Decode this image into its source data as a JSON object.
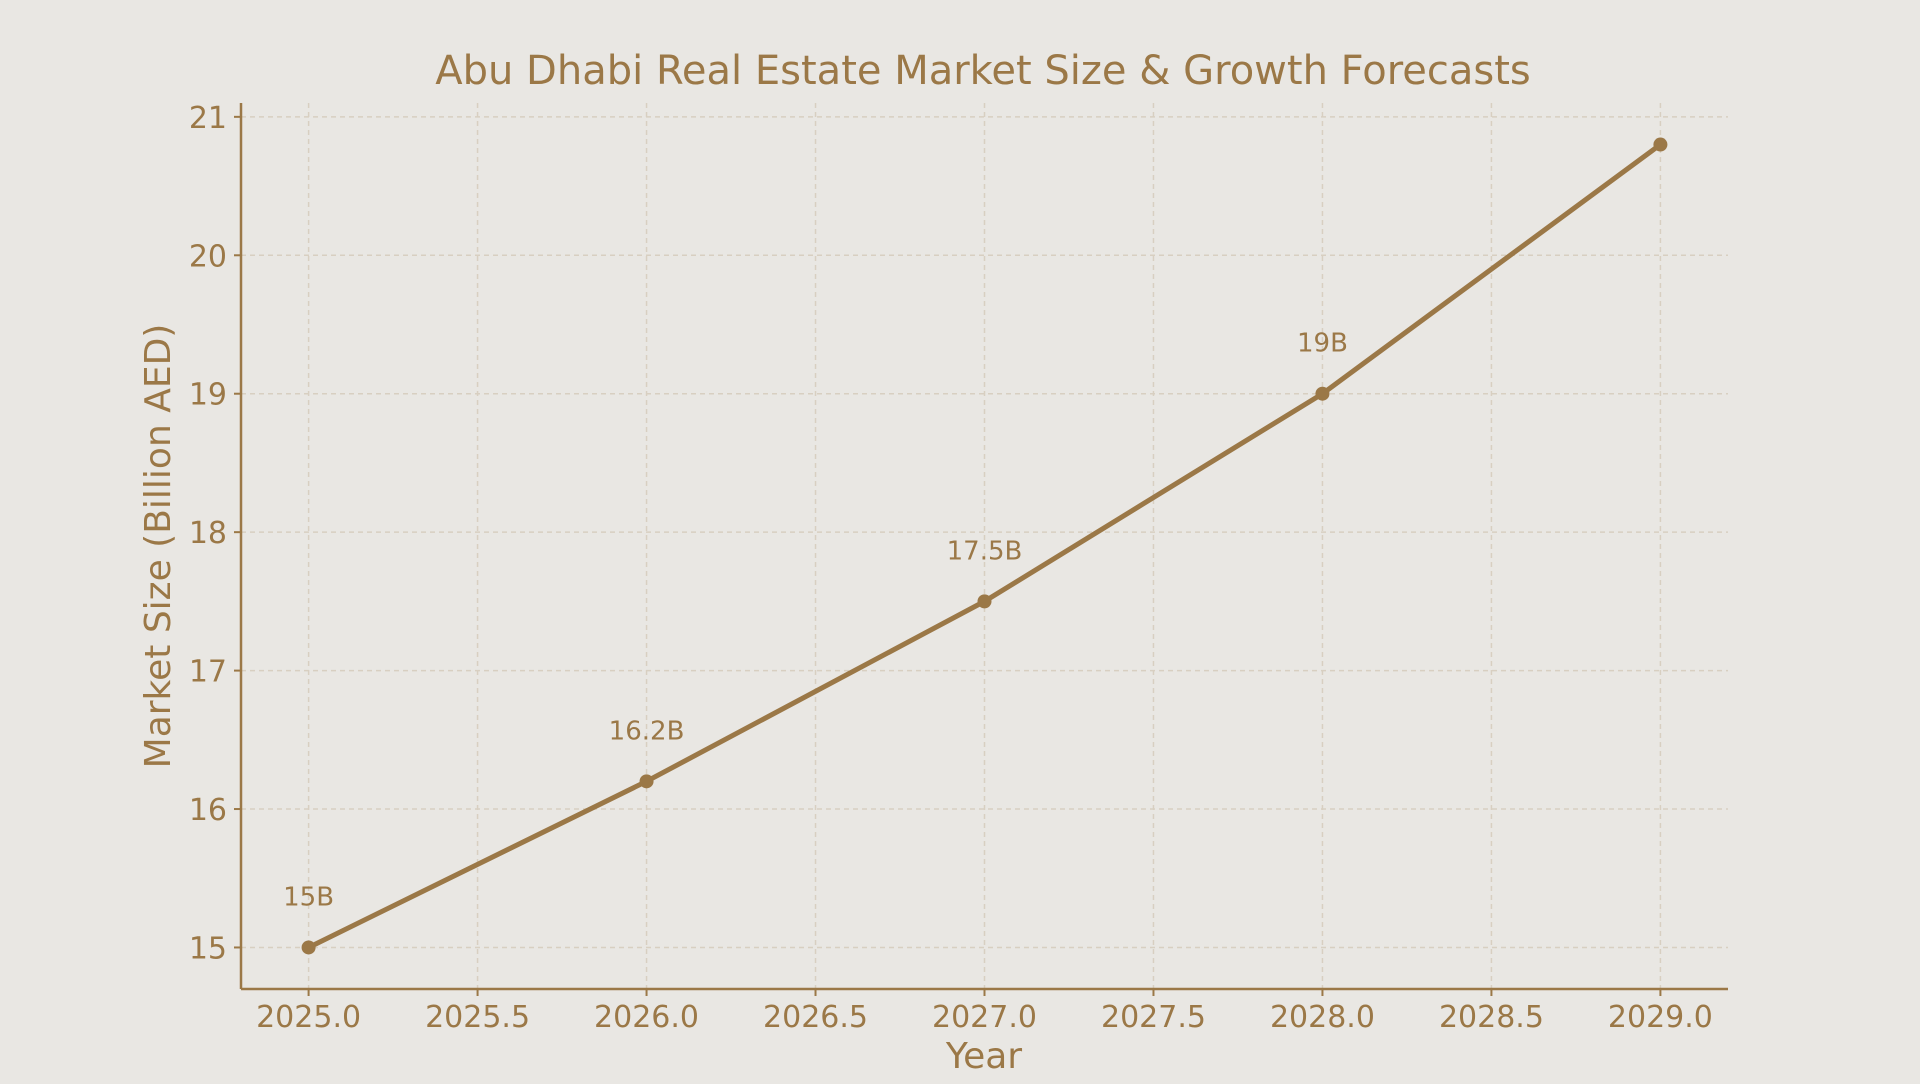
{
  "chart_data": {
    "type": "line",
    "title": "Abu Dhabi Real Estate Market Size & Growth Forecasts",
    "xlabel": "Year",
    "ylabel": "Market Size (Billion AED)",
    "xlim": [
      2024.8,
      2029.2
    ],
    "ylim": [
      14.7,
      21.1
    ],
    "x_ticks": [
      2025.0,
      2025.5,
      2026.0,
      2026.5,
      2027.0,
      2027.5,
      2028.0,
      2028.5,
      2029.0
    ],
    "x_tick_labels": [
      "2025.0",
      "2025.5",
      "2026.0",
      "2026.5",
      "2027.0",
      "2027.5",
      "2028.0",
      "2028.5",
      "2029.0"
    ],
    "y_ticks": [
      15,
      16,
      17,
      18,
      19,
      20,
      21
    ],
    "y_tick_labels": [
      "15",
      "16",
      "17",
      "18",
      "19",
      "20",
      "21"
    ],
    "grid": true,
    "legend": "none",
    "series": [
      {
        "x": [
          2025,
          2026,
          2027,
          2028,
          2029
        ],
        "values": [
          15.0,
          16.2,
          17.5,
          19.0,
          20.8
        ]
      }
    ],
    "data_labels": [
      {
        "x": 2025,
        "y": 15.0,
        "text": "15B"
      },
      {
        "x": 2026,
        "y": 16.2,
        "text": "16.2B"
      },
      {
        "x": 2027,
        "y": 17.5,
        "text": "17.5B"
      },
      {
        "x": 2028,
        "y": 19.0,
        "text": "19B"
      }
    ],
    "colors": {
      "line": "#9b7847",
      "text": "#9b7847",
      "grid": "#d8cfc1",
      "background": "#e9e7e3"
    }
  }
}
